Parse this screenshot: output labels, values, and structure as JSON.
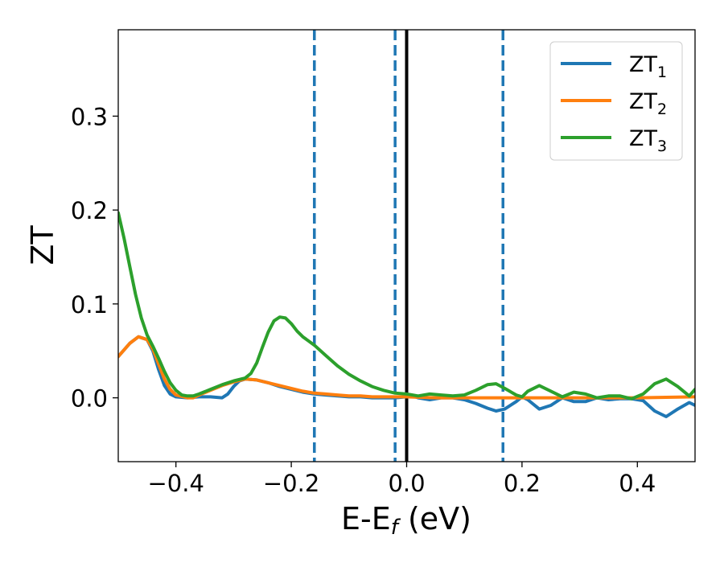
{
  "chart_data": {
    "type": "line",
    "xlabel": "E-E",
    "xlabel_subscript": "f",
    "xlabel_unit": " (eV)",
    "ylabel": "ZT",
    "xlim": [
      -0.5,
      0.5
    ],
    "ylim": [
      -0.068,
      0.392
    ],
    "xticks": [
      -0.4,
      -0.2,
      0.0,
      0.2,
      0.4
    ],
    "xtick_labels": [
      "−0.4",
      "−0.2",
      "0.0",
      "0.2",
      "0.4"
    ],
    "yticks": [
      0.0,
      0.1,
      0.2,
      0.3
    ],
    "ytick_labels": [
      "0.0",
      "0.1",
      "0.2",
      "0.3"
    ],
    "grid": false,
    "legend_position": "top-right",
    "vertical_lines": [
      {
        "x": -0.16,
        "style": "dashed",
        "color": "#1f77b4"
      },
      {
        "x": -0.02,
        "style": "dashed",
        "color": "#1f77b4"
      },
      {
        "x": 0.0,
        "style": "solid",
        "color": "#000000"
      },
      {
        "x": 0.167,
        "style": "dashed",
        "color": "#1f77b4"
      }
    ],
    "series": [
      {
        "name": "ZT",
        "subscript": "1",
        "color": "#1f77b4",
        "points": [
          [
            -0.5,
            0.044
          ],
          [
            -0.48,
            0.058
          ],
          [
            -0.465,
            0.065
          ],
          [
            -0.45,
            0.062
          ],
          [
            -0.44,
            0.05
          ],
          [
            -0.43,
            0.03
          ],
          [
            -0.42,
            0.013
          ],
          [
            -0.41,
            0.004
          ],
          [
            -0.4,
            0.001
          ],
          [
            -0.38,
            0.0
          ],
          [
            -0.36,
            0.001
          ],
          [
            -0.34,
            0.001
          ],
          [
            -0.32,
            0.0
          ],
          [
            -0.31,
            0.004
          ],
          [
            -0.3,
            0.012
          ],
          [
            -0.29,
            0.018
          ],
          [
            -0.28,
            0.02
          ],
          [
            -0.26,
            0.019
          ],
          [
            -0.24,
            0.016
          ],
          [
            -0.22,
            0.012
          ],
          [
            -0.2,
            0.009
          ],
          [
            -0.18,
            0.006
          ],
          [
            -0.16,
            0.004
          ],
          [
            -0.14,
            0.003
          ],
          [
            -0.12,
            0.002
          ],
          [
            -0.1,
            0.001
          ],
          [
            -0.08,
            0.001
          ],
          [
            -0.06,
            0.0
          ],
          [
            -0.04,
            0.0
          ],
          [
            -0.02,
            0.0
          ],
          [
            0.0,
            0.001
          ],
          [
            0.01,
            0.002
          ],
          [
            0.02,
            0.0
          ],
          [
            0.04,
            -0.002
          ],
          [
            0.06,
            0.0
          ],
          [
            0.08,
            0.0
          ],
          [
            0.1,
            -0.002
          ],
          [
            0.12,
            -0.006
          ],
          [
            0.14,
            -0.011
          ],
          [
            0.155,
            -0.014
          ],
          [
            0.17,
            -0.012
          ],
          [
            0.19,
            -0.004
          ],
          [
            0.2,
            0.001
          ],
          [
            0.21,
            -0.002
          ],
          [
            0.23,
            -0.012
          ],
          [
            0.25,
            -0.008
          ],
          [
            0.27,
            0.0
          ],
          [
            0.29,
            -0.004
          ],
          [
            0.31,
            -0.004
          ],
          [
            0.33,
            0.0
          ],
          [
            0.35,
            -0.002
          ],
          [
            0.37,
            -0.001
          ],
          [
            0.39,
            -0.001
          ],
          [
            0.41,
            -0.003
          ],
          [
            0.43,
            -0.014
          ],
          [
            0.45,
            -0.02
          ],
          [
            0.47,
            -0.012
          ],
          [
            0.49,
            -0.005
          ],
          [
            0.5,
            -0.008
          ]
        ]
      },
      {
        "name": "ZT",
        "subscript": "2",
        "color": "#ff7f0e",
        "points": [
          [
            -0.5,
            0.044
          ],
          [
            -0.48,
            0.058
          ],
          [
            -0.465,
            0.065
          ],
          [
            -0.45,
            0.062
          ],
          [
            -0.44,
            0.052
          ],
          [
            -0.43,
            0.036
          ],
          [
            -0.42,
            0.02
          ],
          [
            -0.41,
            0.009
          ],
          [
            -0.4,
            0.003
          ],
          [
            -0.38,
            0.0
          ],
          [
            -0.37,
            0.0
          ],
          [
            -0.36,
            0.003
          ],
          [
            -0.34,
            0.008
          ],
          [
            -0.32,
            0.013
          ],
          [
            -0.3,
            0.017
          ],
          [
            -0.28,
            0.02
          ],
          [
            -0.26,
            0.019
          ],
          [
            -0.24,
            0.016
          ],
          [
            -0.22,
            0.013
          ],
          [
            -0.2,
            0.01
          ],
          [
            -0.18,
            0.007
          ],
          [
            -0.16,
            0.005
          ],
          [
            -0.14,
            0.004
          ],
          [
            -0.12,
            0.003
          ],
          [
            -0.1,
            0.002
          ],
          [
            -0.08,
            0.002
          ],
          [
            -0.06,
            0.001
          ],
          [
            -0.04,
            0.001
          ],
          [
            -0.02,
            0.001
          ],
          [
            0.0,
            0.001
          ],
          [
            0.05,
            0.0
          ],
          [
            0.1,
            0.0
          ],
          [
            0.2,
            0.0
          ],
          [
            0.3,
            0.0
          ],
          [
            0.4,
            0.0
          ],
          [
            0.5,
            0.001
          ]
        ]
      },
      {
        "name": "ZT",
        "subscript": "3",
        "color": "#2ca02c",
        "points": [
          [
            -0.5,
            0.197
          ],
          [
            -0.49,
            0.17
          ],
          [
            -0.48,
            0.14
          ],
          [
            -0.47,
            0.11
          ],
          [
            -0.46,
            0.085
          ],
          [
            -0.45,
            0.067
          ],
          [
            -0.44,
            0.055
          ],
          [
            -0.43,
            0.042
          ],
          [
            -0.42,
            0.028
          ],
          [
            -0.41,
            0.016
          ],
          [
            -0.4,
            0.008
          ],
          [
            -0.39,
            0.003
          ],
          [
            -0.38,
            0.002
          ],
          [
            -0.37,
            0.002
          ],
          [
            -0.36,
            0.004
          ],
          [
            -0.34,
            0.009
          ],
          [
            -0.32,
            0.014
          ],
          [
            -0.3,
            0.018
          ],
          [
            -0.28,
            0.021
          ],
          [
            -0.27,
            0.026
          ],
          [
            -0.26,
            0.037
          ],
          [
            -0.25,
            0.054
          ],
          [
            -0.24,
            0.07
          ],
          [
            -0.23,
            0.082
          ],
          [
            -0.22,
            0.086
          ],
          [
            -0.21,
            0.085
          ],
          [
            -0.2,
            0.079
          ],
          [
            -0.19,
            0.071
          ],
          [
            -0.18,
            0.065
          ],
          [
            -0.16,
            0.056
          ],
          [
            -0.14,
            0.045
          ],
          [
            -0.12,
            0.034
          ],
          [
            -0.1,
            0.025
          ],
          [
            -0.08,
            0.018
          ],
          [
            -0.06,
            0.012
          ],
          [
            -0.04,
            0.008
          ],
          [
            -0.02,
            0.005
          ],
          [
            0.0,
            0.004
          ],
          [
            0.02,
            0.002
          ],
          [
            0.04,
            0.004
          ],
          [
            0.06,
            0.003
          ],
          [
            0.08,
            0.002
          ],
          [
            0.1,
            0.003
          ],
          [
            0.12,
            0.008
          ],
          [
            0.14,
            0.014
          ],
          [
            0.155,
            0.015
          ],
          [
            0.17,
            0.01
          ],
          [
            0.19,
            0.003
          ],
          [
            0.2,
            0.001
          ],
          [
            0.21,
            0.007
          ],
          [
            0.23,
            0.013
          ],
          [
            0.25,
            0.007
          ],
          [
            0.27,
            0.001
          ],
          [
            0.29,
            0.006
          ],
          [
            0.31,
            0.004
          ],
          [
            0.33,
            0.0
          ],
          [
            0.35,
            0.002
          ],
          [
            0.37,
            0.002
          ],
          [
            0.39,
            -0.001
          ],
          [
            0.41,
            0.004
          ],
          [
            0.43,
            0.015
          ],
          [
            0.45,
            0.02
          ],
          [
            0.47,
            0.012
          ],
          [
            0.49,
            0.002
          ],
          [
            0.5,
            0.009
          ]
        ]
      }
    ]
  }
}
